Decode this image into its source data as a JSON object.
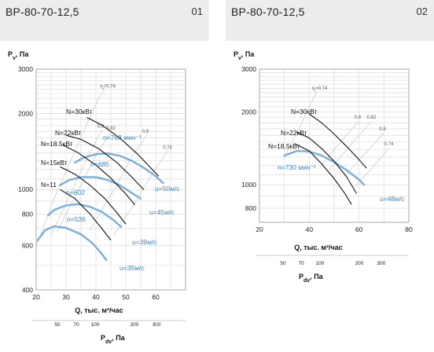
{
  "panels": [
    {
      "title": "ВР-80-70-12,5",
      "number": "01"
    },
    {
      "title": "ВР-80-70-12,5",
      "number": "02"
    }
  ],
  "colors": {
    "blue": "#7aaedb",
    "blue_text": "#3f82bd",
    "black": "#111111",
    "grid": "#d6d6d6",
    "header_bg": "#ededed"
  },
  "chart_data": [
    {
      "type": "line",
      "ylabel": "P_v, Па",
      "xlabel": "Q, тыс. м³/час",
      "pd_label": "P_dv, Па",
      "yscale": "log",
      "xlim": [
        20,
        70
      ],
      "ylim": [
        400,
        3000
      ],
      "x_ticks": [
        20,
        30,
        40,
        50,
        60
      ],
      "y_ticks": [
        400,
        600,
        800,
        1000,
        2000,
        3000
      ],
      "pd_ticks": [
        50,
        70,
        100,
        200,
        300
      ],
      "speed_curves": [
        {
          "label": "n=536",
          "points": [
            [
              20.5,
              630
            ],
            [
              23,
              690
            ],
            [
              26,
              715
            ],
            [
              30,
              705
            ],
            [
              35,
              665
            ],
            [
              39,
              610
            ],
            [
              42,
              555
            ],
            [
              43.5,
              525
            ]
          ]
        },
        {
          "label": "n=602",
          "points": [
            [
              24,
              790
            ],
            [
              26,
              830
            ],
            [
              30,
              865
            ],
            [
              34,
              875
            ],
            [
              38,
              855
            ],
            [
              42,
              815
            ],
            [
              46,
              755
            ],
            [
              48.5,
              710
            ]
          ]
        },
        {
          "label": "n=685",
          "points": [
            [
              28,
              1040
            ],
            [
              31,
              1090
            ],
            [
              35,
              1120
            ],
            [
              40,
              1120
            ],
            [
              44,
              1090
            ],
            [
              48,
              1040
            ],
            [
              52,
              970
            ],
            [
              55,
              920
            ]
          ]
        },
        {
          "label": "n=768 мин⁻¹",
          "points": [
            [
              33,
              1280
            ],
            [
              36,
              1340
            ],
            [
              40,
              1380
            ],
            [
              44,
              1390
            ],
            [
              48,
              1360
            ],
            [
              52,
              1300
            ],
            [
              56,
              1220
            ],
            [
              60,
              1130
            ],
            [
              62.5,
              1060
            ]
          ]
        }
      ],
      "power_curves": [
        {
          "label": "N=11",
          "points": [
            [
              28,
              1000
            ],
            [
              33,
              920
            ],
            [
              38,
              800
            ],
            [
              42,
              700
            ],
            [
              45,
              630
            ]
          ]
        },
        {
          "label": "N=15кВт",
          "points": [
            [
              28,
              1230
            ],
            [
              33,
              1150
            ],
            [
              38,
              1040
            ],
            [
              43,
              920
            ],
            [
              47,
              810
            ],
            [
              50,
              730
            ]
          ]
        },
        {
          "label": "N=18.5кВт",
          "points": [
            [
              29,
              1500
            ],
            [
              34,
              1400
            ],
            [
              40,
              1250
            ],
            [
              45,
              1110
            ],
            [
              50,
              960
            ],
            [
              53,
              870
            ]
          ]
        },
        {
          "label": "N=22кВт",
          "points": [
            [
              30,
              1640
            ],
            [
              35,
              1580
            ],
            [
              41,
              1450
            ],
            [
              47,
              1280
            ],
            [
              52,
              1120
            ],
            [
              56,
              1000
            ]
          ]
        },
        {
          "label": "N=30кВт",
          "points": [
            [
              37,
              1930
            ],
            [
              42,
              1800
            ],
            [
              48,
              1600
            ],
            [
              54,
              1380
            ],
            [
              58,
              1230
            ],
            [
              61,
              1130
            ]
          ]
        }
      ],
      "efficiency_lines": [
        {
          "label": "η=0.74",
          "points": [
            [
              43,
              2480
            ],
            [
              41.5,
              2370
            ],
            [
              37,
              1820
            ],
            [
              32,
              1340
            ],
            [
              26,
              920
            ],
            [
              20,
              590
            ]
          ]
        },
        {
          "label": "0.8",
          "points": [
            [
              42,
              1720
            ],
            [
              38,
              1400
            ],
            [
              33,
              1050
            ],
            [
              29,
              830
            ],
            [
              25,
              660
            ]
          ]
        },
        {
          "label": "0.82",
          "points": [
            [
              45,
              1690
            ],
            [
              40,
              1370
            ],
            [
              35,
              1040
            ],
            [
              30,
              800
            ],
            [
              27,
              680
            ]
          ]
        },
        {
          "label": "0.8",
          "points": [
            [
              57,
              1640
            ],
            [
              52,
              1350
            ],
            [
              47,
              1040
            ],
            [
              42,
              830
            ],
            [
              38,
              690
            ]
          ]
        },
        {
          "label": "0.74",
          "points": [
            [
              64,
              1420
            ],
            [
              59,
              1160
            ],
            [
              54,
              920
            ],
            [
              50,
              780
            ],
            [
              46,
              660
            ]
          ]
        }
      ],
      "speed_annotations": [
        "u=50м/с",
        "u=45м/с",
        "u=39м/с",
        "u=35м/с"
      ],
      "efficiency_header": "η",
      "efficiency_header_value": "0.74"
    },
    {
      "type": "line",
      "ylabel": "P_v, Па",
      "xlabel": "Q, тыс. м³/час",
      "pd_label": "P_dv, Па",
      "yscale": "log",
      "xlim": [
        20,
        80
      ],
      "ylim": [
        700,
        3000
      ],
      "x_ticks": [
        20,
        40,
        60,
        80
      ],
      "x_ticks_labeled": [
        20,
        30,
        40,
        50,
        60,
        70,
        80
      ],
      "y_ticks": [
        800,
        1000,
        2000,
        3000
      ],
      "pd_ticks": [
        50,
        70,
        100,
        200,
        300
      ],
      "speed_curves": [
        {
          "label": "n=730 мин⁻¹",
          "points": [
            [
              30,
              1320
            ],
            [
              35,
              1380
            ],
            [
              40,
              1370
            ],
            [
              45,
              1320
            ],
            [
              50,
              1240
            ],
            [
              55,
              1150
            ],
            [
              60,
              1050
            ],
            [
              62,
              1000
            ]
          ]
        }
      ],
      "power_curves": [
        {
          "label": "N=30кВт",
          "points": [
            [
              40,
              1960
            ],
            [
              45,
              1800
            ],
            [
              50,
              1620
            ],
            [
              55,
              1440
            ],
            [
              60,
              1270
            ],
            [
              63,
              1170
            ]
          ]
        },
        {
          "label": "N=22кВт",
          "points": [
            [
              35,
              1650
            ],
            [
              40,
              1560
            ],
            [
              45,
              1410
            ],
            [
              50,
              1250
            ],
            [
              55,
              1080
            ],
            [
              59,
              920
            ]
          ]
        },
        {
          "label": "N=18.5кВт",
          "points": [
            [
              34,
              1480
            ],
            [
              40,
              1380
            ],
            [
              45,
              1220
            ],
            [
              50,
              1060
            ],
            [
              54,
              930
            ],
            [
              57,
              830
            ]
          ]
        }
      ],
      "efficiency_lines": [
        {
          "label": "η=0.74",
          "points": [
            [
              43,
              2420
            ],
            [
              41,
              2200
            ],
            [
              37,
              1800
            ],
            [
              33,
              1500
            ],
            [
              30,
              1290
            ]
          ]
        },
        {
          "label": "0.8",
          "points": [
            [
              60,
              1830
            ],
            [
              54,
              1560
            ],
            [
              48,
              1320
            ],
            [
              44,
              1170
            ]
          ]
        },
        {
          "label": "0.82",
          "points": [
            [
              65,
              1830
            ],
            [
              59,
              1560
            ],
            [
              53,
              1320
            ],
            [
              48,
              1150
            ]
          ]
        },
        {
          "label": "0.8",
          "points": [
            [
              70,
              1640
            ],
            [
              64,
              1400
            ],
            [
              58,
              1200
            ],
            [
              54,
              1080
            ]
          ]
        },
        {
          "label": "0.74",
          "points": [
            [
              72,
              1420
            ],
            [
              67,
              1230
            ],
            [
              62,
              1080
            ],
            [
              58,
              980
            ]
          ]
        }
      ],
      "speed_annotations": [
        "u=48м/с"
      ],
      "efficiency_header": "η",
      "efficiency_header_value": "0.74"
    }
  ]
}
